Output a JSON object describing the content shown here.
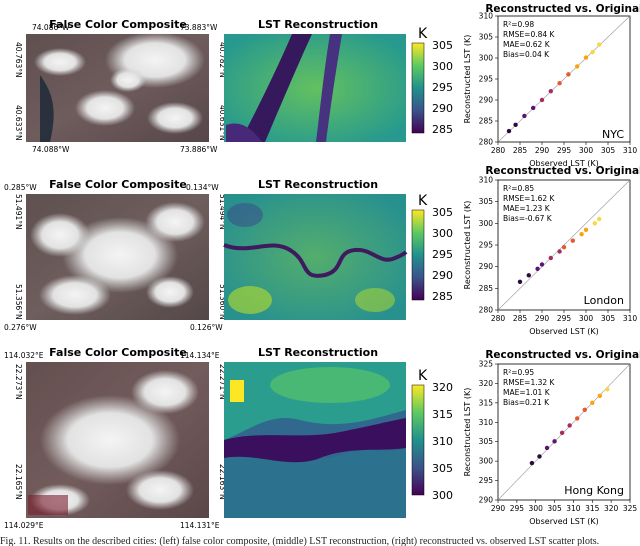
{
  "figure": {
    "panels": [
      {
        "id": "nyc",
        "city": "NYC",
        "fc_title": "False Color Composite",
        "lst_title": "LST Reconstruction",
        "scatter_title": "Reconstructed vs. Original",
        "fc_coords": {
          "top_left_lon": "74.086°W",
          "top_right_lon": "73.883°W",
          "bottom_left_lon": "74.088°W",
          "bottom_right_lon": "73.886°W",
          "left_top_lat": "40.763°N",
          "left_bottom_lat": "40.633°N",
          "right_top_lat": "40.782°N",
          "right_bottom_lat": "40.631°N"
        },
        "colorbar": {
          "unit": "K",
          "ticks": [
            "305",
            "300",
            "295",
            "290",
            "285"
          ]
        },
        "stats": [
          "R²=0.98",
          "RMSE=0.84 K",
          "MAE=0.62 K",
          "Bias=0.04 K"
        ]
      },
      {
        "id": "london",
        "city": "London",
        "fc_title": "False Color Composite",
        "lst_title": "LST Reconstruction",
        "scatter_title": "Reconstructed vs. Original",
        "fc_coords": {
          "top_left_lon": "0.285°W",
          "top_right_lon": "0.134°W",
          "bottom_left_lon": "0.276°W",
          "bottom_right_lon": "0.126°W",
          "left_top_lat": "51.491°N",
          "left_bottom_lat": "51.356°N",
          "right_top_lat": "51.494°N",
          "right_bottom_lat": "51.360°N"
        },
        "colorbar": {
          "unit": "K",
          "ticks": [
            "305",
            "300",
            "295",
            "290",
            "285"
          ]
        },
        "stats": [
          "R²=0.85",
          "RMSE=1.62 K",
          "MAE=1.23 K",
          "Bias=-0.67 K"
        ]
      },
      {
        "id": "hongkong",
        "city": "Hong Kong",
        "fc_title": "False Color Composite",
        "lst_title": "LST Reconstruction",
        "scatter_title": "Reconstructed vs. Original",
        "fc_coords": {
          "top_left_lon": "114.032°E",
          "top_right_lon": "114.134°E",
          "bottom_left_lon": "114.029°E",
          "bottom_right_lon": "114.131°E",
          "left_top_lat": "22.273°N",
          "left_bottom_lat": "22.165°N",
          "right_top_lat": "22.271°N",
          "right_bottom_lat": "22.163°N"
        },
        "colorbar": {
          "unit": "K",
          "ticks": [
            "320",
            "315",
            "310",
            "305",
            "300"
          ]
        },
        "stats": [
          "R²=0.95",
          "RMSE=1.32 K",
          "MAE=1.01 K",
          "Bias=0.21 K"
        ]
      }
    ],
    "caption": "Fig. 11. Results on the described cities: (left) false color composite, (middle) LST reconstruction, (right) reconstructed vs. observed LST scatter plots."
  },
  "chart_data": [
    {
      "type": "scatter",
      "title": "Reconstructed vs. Original",
      "xlabel": "Observed LST (K)",
      "ylabel": "Reconstructed LST (K)",
      "xlim": [
        280,
        310
      ],
      "ylim": [
        280,
        310
      ],
      "xticks": [
        280,
        285,
        290,
        295,
        300,
        305,
        310
      ],
      "yticks": [
        280,
        285,
        290,
        295,
        300,
        305,
        310
      ],
      "annotation": "NYC",
      "series": [
        {
          "x": [
            282.5,
            284,
            286,
            288,
            290,
            292,
            294,
            296,
            298,
            300,
            301.5,
            303
          ],
          "y": [
            282.6,
            284.1,
            286.2,
            288.1,
            290.0,
            292.1,
            294.0,
            296.1,
            298.0,
            300.1,
            301.4,
            303.2
          ]
        }
      ]
    },
    {
      "type": "scatter",
      "title": "Reconstructed vs. Original",
      "xlabel": "Observed LST (K)",
      "ylabel": "Reconstructed LST (K)",
      "xlim": [
        280,
        310
      ],
      "ylim": [
        280,
        310
      ],
      "xticks": [
        280,
        285,
        290,
        295,
        300,
        305,
        310
      ],
      "yticks": [
        280,
        285,
        290,
        295,
        300,
        305,
        310
      ],
      "annotation": "London",
      "series": [
        {
          "x": [
            285,
            287,
            289,
            290,
            292,
            294,
            295,
            297,
            299,
            300,
            302,
            303
          ],
          "y": [
            286.5,
            288,
            289.5,
            290.5,
            292,
            293.5,
            294.5,
            296,
            297.5,
            298.5,
            300,
            301
          ]
        }
      ]
    },
    {
      "type": "scatter",
      "title": "Reconstructed vs. Original",
      "xlabel": "Observed LST (K)",
      "ylabel": "Reconstructed LST (K)",
      "xlim": [
        290,
        325
      ],
      "ylim": [
        290,
        325
      ],
      "xticks": [
        290,
        295,
        300,
        305,
        310,
        315,
        320,
        325
      ],
      "yticks": [
        290,
        295,
        300,
        305,
        310,
        315,
        320,
        325
      ],
      "annotation": "Hong Kong",
      "series": [
        {
          "x": [
            299,
            301,
            303,
            305,
            307,
            309,
            311,
            313,
            315,
            317,
            319
          ],
          "y": [
            299.5,
            301.2,
            303.4,
            305.1,
            307.3,
            309.2,
            311.0,
            313.2,
            315.0,
            316.8,
            318.5
          ]
        }
      ]
    }
  ]
}
